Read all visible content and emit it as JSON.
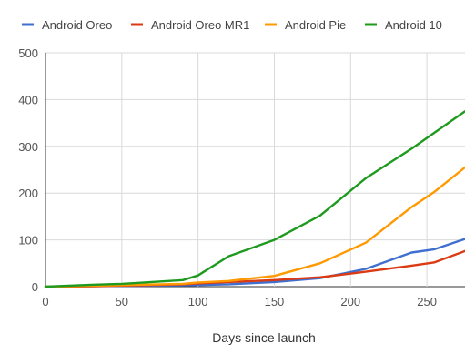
{
  "chart_data": {
    "type": "line",
    "title": "",
    "xlabel": "Days since launch",
    "ylabel": "",
    "xlim": [
      0,
      275
    ],
    "ylim": [
      0,
      500
    ],
    "x_ticks": [
      0,
      50,
      100,
      150,
      200,
      250
    ],
    "y_ticks": [
      0,
      100,
      200,
      300,
      400,
      500
    ],
    "grid": true,
    "legend_position": "top",
    "series": [
      {
        "name": "Android Oreo",
        "color": "#3F6FCF",
        "points": [
          [
            0,
            0
          ],
          [
            30,
            1
          ],
          [
            60,
            2
          ],
          [
            90,
            3
          ],
          [
            120,
            5
          ],
          [
            150,
            10
          ],
          [
            180,
            18
          ],
          [
            210,
            38
          ],
          [
            240,
            73
          ],
          [
            255,
            80
          ],
          [
            275,
            102
          ]
        ]
      },
      {
        "name": "Android Oreo MR1",
        "color": "#DC3A12",
        "points": [
          [
            0,
            0
          ],
          [
            30,
            1
          ],
          [
            60,
            3
          ],
          [
            90,
            5
          ],
          [
            100,
            7
          ],
          [
            120,
            10
          ],
          [
            150,
            14
          ],
          [
            180,
            20
          ],
          [
            210,
            32
          ],
          [
            240,
            45
          ],
          [
            255,
            52
          ],
          [
            275,
            76
          ]
        ]
      },
      {
        "name": "Android Pie",
        "color": "#FF9900",
        "points": [
          [
            0,
            0
          ],
          [
            30,
            2
          ],
          [
            60,
            4
          ],
          [
            90,
            6
          ],
          [
            100,
            9
          ],
          [
            120,
            12
          ],
          [
            150,
            23
          ],
          [
            180,
            50
          ],
          [
            210,
            94
          ],
          [
            240,
            170
          ],
          [
            255,
            203
          ],
          [
            275,
            255
          ]
        ]
      },
      {
        "name": "Android 10",
        "color": "#1E9A1E",
        "points": [
          [
            0,
            0
          ],
          [
            30,
            4
          ],
          [
            50,
            6
          ],
          [
            60,
            8
          ],
          [
            90,
            14
          ],
          [
            100,
            24
          ],
          [
            120,
            65
          ],
          [
            150,
            100
          ],
          [
            180,
            152
          ],
          [
            210,
            232
          ],
          [
            240,
            295
          ],
          [
            275,
            375
          ]
        ]
      }
    ]
  }
}
